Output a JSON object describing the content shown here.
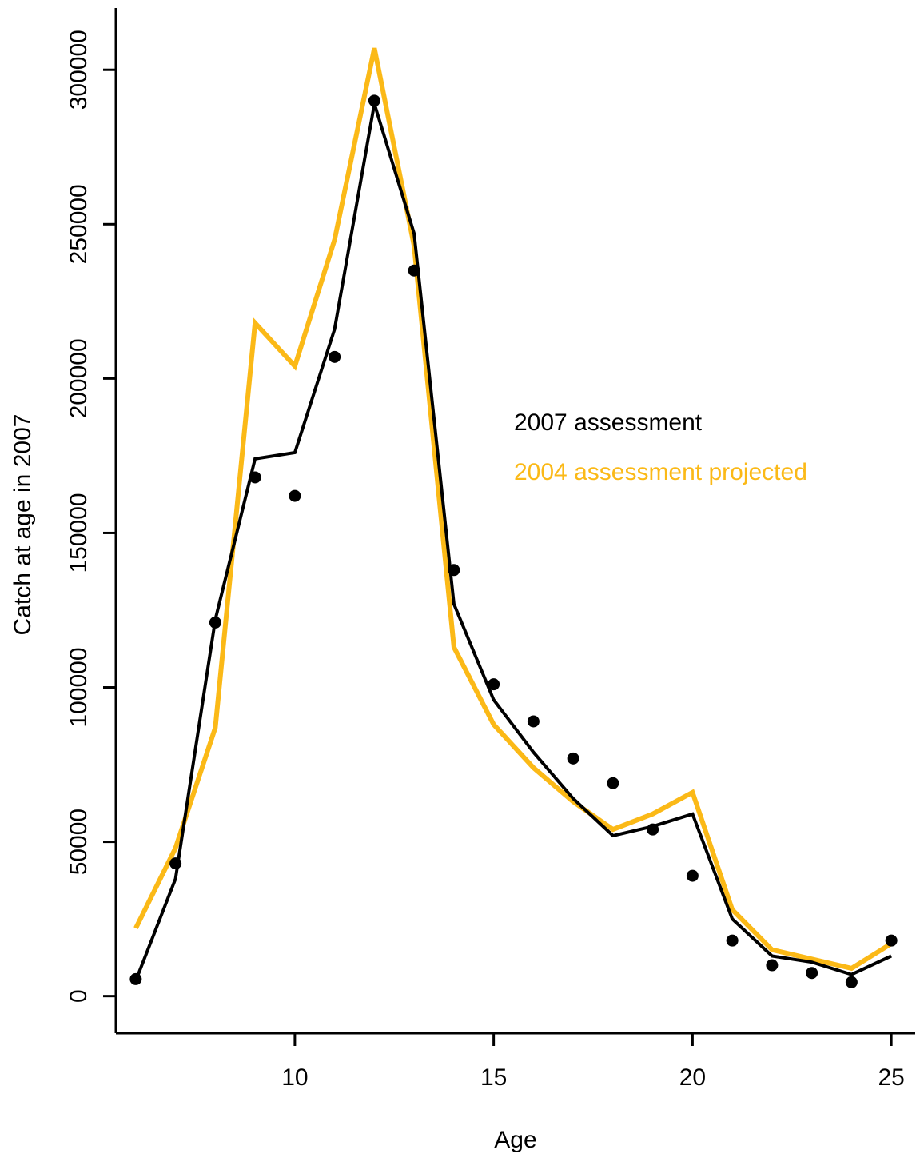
{
  "chart_data": {
    "type": "line",
    "title": "",
    "xlabel": "Age",
    "ylabel": "Catch at age in 2007",
    "xlim": [
      5.5,
      25.6
    ],
    "ylim": [
      -12000,
      320000
    ],
    "xticks": [
      10,
      15,
      20,
      25
    ],
    "xtick_labels": [
      "10",
      "15",
      "20",
      "25"
    ],
    "yticks": [
      0,
      50000,
      100000,
      150000,
      200000,
      250000,
      300000
    ],
    "ytick_labels": [
      "0",
      "50000",
      "100000",
      "150000",
      "200000",
      "250000",
      "300000"
    ],
    "grid": false,
    "legend_position": "right-center",
    "x": [
      6,
      7,
      8,
      9,
      10,
      11,
      12,
      13,
      14,
      15,
      16,
      17,
      18,
      19,
      20,
      21,
      22,
      23,
      24,
      25
    ],
    "series": [
      {
        "name": "2007 assessment",
        "kind": "line",
        "color": "#000000",
        "values": [
          5000,
          38000,
          122000,
          174000,
          176000,
          216000,
          289000,
          247000,
          127000,
          96000,
          79000,
          64000,
          52000,
          55000,
          59000,
          25000,
          13000,
          11000,
          7000,
          13000
        ]
      },
      {
        "name": "2004 assessment projected",
        "kind": "line",
        "color": "#FBB917",
        "values": [
          22000,
          48000,
          87000,
          218000,
          204000,
          245000,
          307000,
          243000,
          113000,
          88000,
          74000,
          63000,
          54000,
          59000,
          66000,
          28000,
          15000,
          12000,
          9000,
          17000
        ]
      },
      {
        "name": "",
        "kind": "points",
        "color": "#000000",
        "values": [
          5500,
          43000,
          121000,
          168000,
          162000,
          207000,
          290000,
          235000,
          138000,
          101000,
          89000,
          77000,
          69000,
          54000,
          39000,
          18000,
          10000,
          7500,
          4500,
          18000
        ]
      }
    ]
  }
}
